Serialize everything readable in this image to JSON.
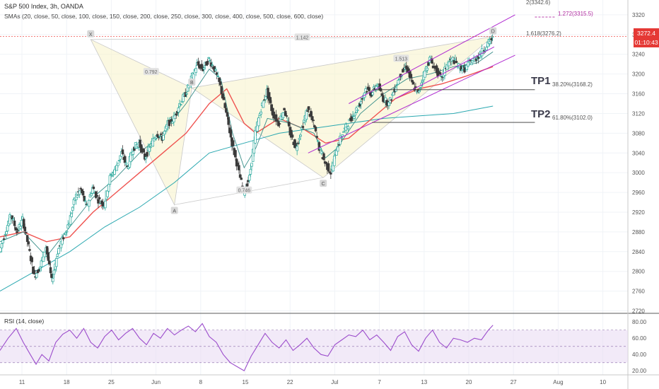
{
  "header": {
    "title": "S&P 500 Index, 3h, OANDA",
    "sma_label": "SMAs (20, close, 50, close, 100, close, 150, close, 200, close, 250, close, 300, close, 400, close, 500, close, 600, close)",
    "rsi_label": "RSI (14, close)"
  },
  "price_tags": {
    "last": "3272.4",
    "countdown": "01:10:43"
  },
  "annotations": {
    "tp1": "TP1",
    "tp2": "TP2",
    "fib_tp1": "38.20%(3168.2)",
    "fib_tp2": "61.80%(3102.0)",
    "fib_1618": "1.618(3276.2)",
    "fib_1272": "1.272(3315.5)",
    "fib_2": "2(3342.6)"
  },
  "pattern_points": [
    {
      "label": "X",
      "t": 7.8,
      "price": 3270
    },
    {
      "label": "A",
      "t": 15.0,
      "price": 2935
    },
    {
      "label": "B",
      "t": 16.5,
      "price": 3172
    },
    {
      "label": "C",
      "t": 27.8,
      "price": 2990
    },
    {
      "label": "D",
      "t": 42.4,
      "price": 3276
    }
  ],
  "pattern_ratios": [
    {
      "text": "0.792",
      "t": 13.0,
      "price": 3205
    },
    {
      "text": "0.746",
      "t": 21.0,
      "price": 2965
    },
    {
      "text": "1.513",
      "t": 34.5,
      "price": 3232
    },
    {
      "text": "1.142",
      "t": 26.0,
      "price": 3275
    }
  ],
  "chart_data": [
    {
      "type": "candlestick",
      "x_ticks": [
        "11",
        "18",
        "25",
        "Jun",
        "8",
        "15",
        "22",
        "Jul",
        "7",
        "13",
        "20",
        "27",
        "Aug",
        "10"
      ],
      "y_ticks": [
        2720,
        2760,
        2800,
        2840,
        2880,
        2920,
        2960,
        3000,
        3040,
        3080,
        3120,
        3160,
        3200,
        3240,
        3280,
        3320
      ],
      "ylim": [
        2715,
        3350
      ],
      "close_path": [
        [
          0,
          2840
        ],
        [
          0.5,
          2880
        ],
        [
          1.0,
          2915
        ],
        [
          1.5,
          2880
        ],
        [
          2.0,
          2905
        ],
        [
          2.5,
          2850
        ],
        [
          3.0,
          2790
        ],
        [
          3.5,
          2810
        ],
        [
          4.0,
          2850
        ],
        [
          4.5,
          2780
        ],
        [
          5.0,
          2840
        ],
        [
          5.5,
          2870
        ],
        [
          6.0,
          2900
        ],
        [
          6.5,
          2950
        ],
        [
          7.0,
          2965
        ],
        [
          7.5,
          2930
        ],
        [
          8.0,
          2970
        ],
        [
          8.5,
          2945
        ],
        [
          9.0,
          2935
        ],
        [
          9.5,
          2990
        ],
        [
          10.0,
          3010
        ],
        [
          10.5,
          3040
        ],
        [
          11.0,
          3010
        ],
        [
          11.5,
          3050
        ],
        [
          12.0,
          3060
        ],
        [
          12.5,
          3030
        ],
        [
          13.0,
          3055
        ],
        [
          13.5,
          3080
        ],
        [
          14.0,
          3070
        ],
        [
          14.5,
          3100
        ],
        [
          15.0,
          3110
        ],
        [
          15.5,
          3140
        ],
        [
          16.0,
          3160
        ],
        [
          16.5,
          3190
        ],
        [
          17.0,
          3220
        ],
        [
          17.5,
          3210
        ],
        [
          18.0,
          3230
        ],
        [
          18.5,
          3210
        ],
        [
          19.0,
          3175
        ],
        [
          19.5,
          3120
        ],
        [
          20.0,
          3060
        ],
        [
          20.5,
          3010
        ],
        [
          21.0,
          2960
        ],
        [
          21.5,
          2990
        ],
        [
          22.0,
          3080
        ],
        [
          22.5,
          3130
        ],
        [
          23.0,
          3165
        ],
        [
          23.5,
          3120
        ],
        [
          24.0,
          3100
        ],
        [
          24.5,
          3130
        ],
        [
          25.0,
          3080
        ],
        [
          25.5,
          3050
        ],
        [
          26.0,
          3090
        ],
        [
          26.5,
          3130
        ],
        [
          27.0,
          3100
        ],
        [
          27.5,
          3050
        ],
        [
          28.0,
          3020
        ],
        [
          28.5,
          3000
        ],
        [
          29.0,
          3050
        ],
        [
          29.5,
          3080
        ],
        [
          30.0,
          3100
        ],
        [
          30.5,
          3120
        ],
        [
          31.0,
          3140
        ],
        [
          31.5,
          3170
        ],
        [
          32.0,
          3160
        ],
        [
          32.5,
          3180
        ],
        [
          33.0,
          3150
        ],
        [
          33.5,
          3140
        ],
        [
          34.0,
          3170
        ],
        [
          34.5,
          3200
        ],
        [
          35.0,
          3215
        ],
        [
          35.5,
          3180
        ],
        [
          36.0,
          3160
        ],
        [
          36.5,
          3200
        ],
        [
          37.0,
          3230
        ],
        [
          37.5,
          3210
        ],
        [
          38.0,
          3190
        ],
        [
          38.5,
          3220
        ],
        [
          39.0,
          3230
        ],
        [
          39.5,
          3215
        ],
        [
          40.0,
          3210
        ],
        [
          40.5,
          3225
        ],
        [
          41.0,
          3232
        ],
        [
          41.5,
          3245
        ],
        [
          42.0,
          3262
        ],
        [
          42.4,
          3272
        ]
      ],
      "x_range": [
        0,
        54
      ],
      "sma_fast": [
        [
          0,
          2860
        ],
        [
          2,
          2880
        ],
        [
          4,
          2830
        ],
        [
          6,
          2890
        ],
        [
          8,
          2950
        ],
        [
          10,
          2990
        ],
        [
          12,
          3040
        ],
        [
          14,
          3080
        ],
        [
          16,
          3140
        ],
        [
          18,
          3210
        ],
        [
          19,
          3190
        ],
        [
          20,
          3080
        ],
        [
          21,
          3010
        ],
        [
          22,
          3050
        ],
        [
          23,
          3110
        ],
        [
          25,
          3100
        ],
        [
          27,
          3080
        ],
        [
          28,
          3030
        ],
        [
          29,
          3050
        ],
        [
          31,
          3120
        ],
        [
          33,
          3160
        ],
        [
          35,
          3190
        ],
        [
          37,
          3200
        ],
        [
          39,
          3215
        ],
        [
          41,
          3222
        ],
        [
          42.4,
          3245
        ]
      ],
      "sma_mid": [
        [
          0,
          2870
        ],
        [
          2,
          2880
        ],
        [
          4,
          2860
        ],
        [
          6,
          2870
        ],
        [
          8,
          2920
        ],
        [
          10,
          2960
        ],
        [
          12,
          3000
        ],
        [
          14,
          3040
        ],
        [
          16,
          3080
        ],
        [
          18,
          3140
        ],
        [
          19.5,
          3170
        ],
        [
          21,
          3100
        ],
        [
          22,
          3080
        ],
        [
          24,
          3110
        ],
        [
          26,
          3090
        ],
        [
          28,
          3060
        ],
        [
          30,
          3070
        ],
        [
          32,
          3110
        ],
        [
          34,
          3150
        ],
        [
          36,
          3170
        ],
        [
          38,
          3180
        ],
        [
          40,
          3195
        ],
        [
          42.4,
          3215
        ]
      ],
      "sma_slow": [
        [
          0,
          2760
        ],
        [
          3,
          2800
        ],
        [
          6,
          2840
        ],
        [
          9,
          2890
        ],
        [
          12,
          2930
        ],
        [
          15,
          2980
        ],
        [
          18,
          3040
        ],
        [
          21,
          3060
        ],
        [
          24,
          3080
        ],
        [
          27,
          3090
        ],
        [
          30,
          3100
        ],
        [
          33,
          3110
        ],
        [
          36,
          3115
        ],
        [
          39,
          3120
        ],
        [
          42.4,
          3135
        ]
      ],
      "channel_upper": [
        [
          30.0,
          3140
        ],
        [
          44.3,
          3320
        ]
      ],
      "channel_lower": [
        [
          26.5,
          3040
        ],
        [
          44.3,
          3238
        ]
      ],
      "channel_mid": [
        [
          34.0,
          3150
        ],
        [
          42.5,
          3255
        ]
      ],
      "fib_lines": [
        {
          "price": 3168.2,
          "t_start": 32.0,
          "t_end": 46.0,
          "style": "solid"
        },
        {
          "price": 3102.0,
          "t_start": 32.0,
          "t_end": 46.0,
          "style": "solid"
        },
        {
          "price": 3276.2,
          "t_start": 0,
          "t_end": 54,
          "style": "dashed-red"
        },
        {
          "price": 3315.5,
          "t_start": 46.0,
          "t_end": 47.8,
          "style": "dashed-mag"
        }
      ]
    },
    {
      "type": "line",
      "title": "RSI (14, close)",
      "y_ticks": [
        20,
        40,
        60,
        80
      ],
      "ylim": [
        15,
        88
      ],
      "band": [
        30,
        70
      ],
      "rsi_path": [
        [
          0,
          45
        ],
        [
          0.7,
          60
        ],
        [
          1.4,
          72
        ],
        [
          2,
          55
        ],
        [
          2.6,
          40
        ],
        [
          3.1,
          28
        ],
        [
          3.6,
          40
        ],
        [
          4.2,
          32
        ],
        [
          4.8,
          55
        ],
        [
          5.4,
          65
        ],
        [
          6,
          70
        ],
        [
          6.6,
          60
        ],
        [
          7.2,
          72
        ],
        [
          7.8,
          55
        ],
        [
          8.4,
          48
        ],
        [
          9,
          62
        ],
        [
          9.6,
          70
        ],
        [
          10.2,
          58
        ],
        [
          10.8,
          66
        ],
        [
          11.4,
          72
        ],
        [
          12,
          60
        ],
        [
          12.6,
          52
        ],
        [
          13.2,
          66
        ],
        [
          13.8,
          60
        ],
        [
          14.4,
          72
        ],
        [
          15,
          64
        ],
        [
          15.6,
          70
        ],
        [
          16.2,
          75
        ],
        [
          16.8,
          68
        ],
        [
          17.4,
          78
        ],
        [
          18,
          62
        ],
        [
          18.6,
          55
        ],
        [
          19.2,
          40
        ],
        [
          19.8,
          30
        ],
        [
          20.4,
          25
        ],
        [
          21,
          20
        ],
        [
          21.6,
          38
        ],
        [
          22.2,
          52
        ],
        [
          22.8,
          66
        ],
        [
          23.4,
          55
        ],
        [
          24,
          48
        ],
        [
          24.6,
          58
        ],
        [
          25.2,
          45
        ],
        [
          25.8,
          52
        ],
        [
          26.4,
          60
        ],
        [
          27,
          48
        ],
        [
          27.6,
          40
        ],
        [
          28.2,
          38
        ],
        [
          28.8,
          52
        ],
        [
          29.4,
          58
        ],
        [
          30,
          64
        ],
        [
          30.6,
          62
        ],
        [
          31.2,
          70
        ],
        [
          31.8,
          58
        ],
        [
          32.4,
          64
        ],
        [
          33,
          55
        ],
        [
          33.6,
          45
        ],
        [
          34.2,
          62
        ],
        [
          34.8,
          68
        ],
        [
          35.4,
          52
        ],
        [
          36,
          44
        ],
        [
          36.6,
          60
        ],
        [
          37.2,
          70
        ],
        [
          37.8,
          55
        ],
        [
          38.4,
          48
        ],
        [
          39,
          60
        ],
        [
          39.6,
          58
        ],
        [
          40.2,
          55
        ],
        [
          40.8,
          60
        ],
        [
          41.4,
          58
        ],
        [
          42,
          70
        ],
        [
          42.4,
          76
        ]
      ]
    }
  ]
}
